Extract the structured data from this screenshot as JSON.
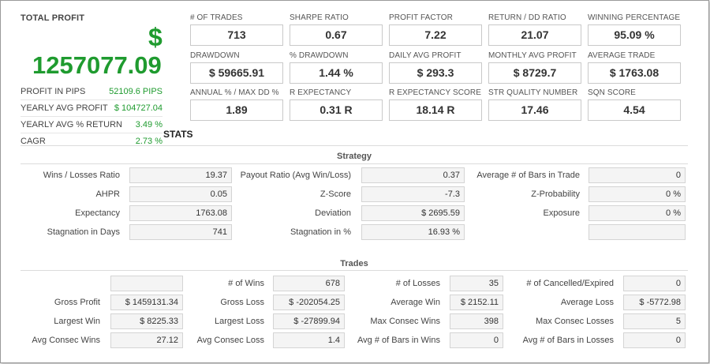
{
  "total_profit": {
    "label": "TOTAL PROFIT",
    "currency_symbol": "$",
    "value": "1257077.09"
  },
  "summary": [
    {
      "label": "PROFIT IN PIPS",
      "value": "52109.6 PIPS"
    },
    {
      "label": "YEARLY AVG PROFIT",
      "value": "$ 104727.04"
    },
    {
      "label": "YEARLY AVG % RETURN",
      "value": "3.49 %"
    },
    {
      "label": "CAGR",
      "value": "2.73 %"
    }
  ],
  "metrics": [
    {
      "label": "# OF TRADES",
      "value": "713"
    },
    {
      "label": "SHARPE RATIO",
      "value": "0.67"
    },
    {
      "label": "PROFIT FACTOR",
      "value": "7.22"
    },
    {
      "label": "RETURN / DD RATIO",
      "value": "21.07"
    },
    {
      "label": "WINNING PERCENTAGE",
      "value": "95.09 %"
    },
    {
      "label": "DRAWDOWN",
      "value": "$ 59665.91"
    },
    {
      "label": "% DRAWDOWN",
      "value": "1.44 %"
    },
    {
      "label": "DAILY AVG PROFIT",
      "value": "$ 293.3"
    },
    {
      "label": "MONTHLY AVG PROFIT",
      "value": "$ 8729.7"
    },
    {
      "label": "AVERAGE TRADE",
      "value": "$ 1763.08"
    },
    {
      "label": "ANNUAL % / MAX DD %",
      "value": "1.89"
    },
    {
      "label": "R EXPECTANCY",
      "value": "0.31 R"
    },
    {
      "label": "R EXPECTANCY SCORE",
      "value": "18.14 R"
    },
    {
      "label": "STR QUALITY NUMBER",
      "value": "17.46"
    },
    {
      "label": "SQN SCORE",
      "value": "4.54"
    }
  ],
  "stats": {
    "title": "STATS",
    "strategy": {
      "title": "Strategy",
      "rows": [
        [
          {
            "label": "Wins / Losses Ratio",
            "value": "19.37"
          },
          {
            "label": "Payout Ratio (Avg Win/Loss)",
            "value": "0.37"
          },
          {
            "label": "Average # of Bars in Trade",
            "value": "0"
          }
        ],
        [
          {
            "label": "AHPR",
            "value": "0.05"
          },
          {
            "label": "Z-Score",
            "value": "-7.3"
          },
          {
            "label": "Z-Probability",
            "value": "0 %"
          }
        ],
        [
          {
            "label": "Expectancy",
            "value": "1763.08"
          },
          {
            "label": "Deviation",
            "value": "$ 2695.59"
          },
          {
            "label": "Exposure",
            "value": "0 %"
          }
        ],
        [
          {
            "label": "Stagnation in Days",
            "value": "741"
          },
          {
            "label": "Stagnation in %",
            "value": "16.93 %"
          },
          {
            "label": "",
            "value": ""
          }
        ]
      ]
    },
    "trades": {
      "title": "Trades",
      "rows": [
        [
          {
            "label": "",
            "value": ""
          },
          {
            "label": "# of Wins",
            "value": "678"
          },
          {
            "label": "# of Losses",
            "value": "35"
          },
          {
            "label": "# of Cancelled/Expired",
            "value": "0"
          }
        ],
        [
          {
            "label": "Gross Profit",
            "value": "$ 1459131.34"
          },
          {
            "label": "Gross Loss",
            "value": "$ -202054.25"
          },
          {
            "label": "Average Win",
            "value": "$ 2152.11"
          },
          {
            "label": "Average Loss",
            "value": "$ -5772.98"
          }
        ],
        [
          {
            "label": "Largest Win",
            "value": "$ 8225.33"
          },
          {
            "label": "Largest Loss",
            "value": "$ -27899.94"
          },
          {
            "label": "Max Consec Wins",
            "value": "398"
          },
          {
            "label": "Max Consec Losses",
            "value": "5"
          }
        ],
        [
          {
            "label": "Avg Consec Wins",
            "value": "27.12"
          },
          {
            "label": "Avg Consec Loss",
            "value": "1.4"
          },
          {
            "label": "Avg # of Bars in Wins",
            "value": "0"
          },
          {
            "label": "Avg # of Bars in Losses",
            "value": "0"
          }
        ]
      ]
    }
  },
  "colors": {
    "profit_green": "#1f9b2f",
    "border": "#c9c9c9",
    "box_fill": "#f4f4f4"
  }
}
